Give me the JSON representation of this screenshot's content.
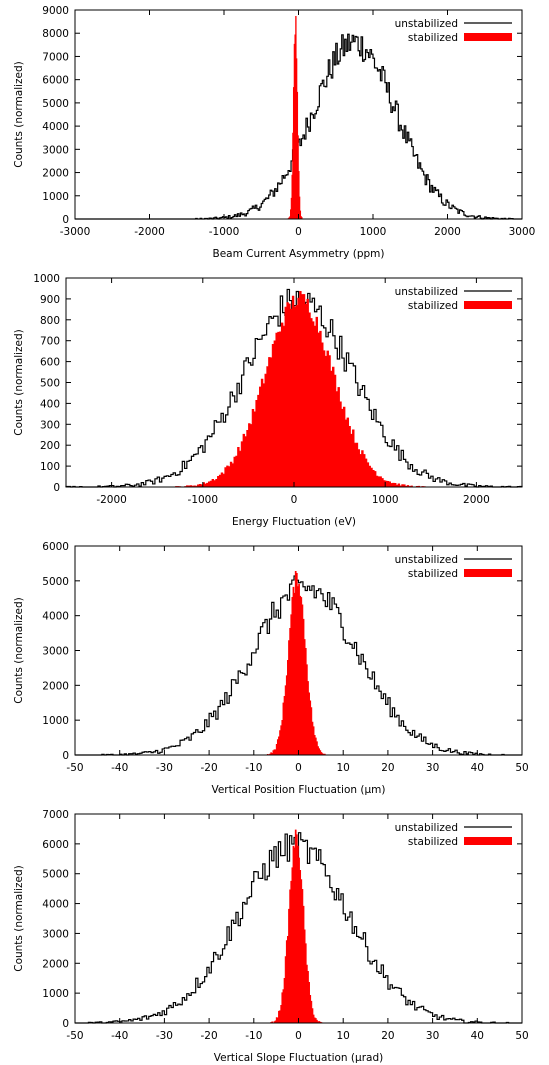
{
  "chart_data": [
    {
      "type": "histogram",
      "xlabel": "Beam Current Asymmetry (ppm)",
      "ylabel": "Counts (normalized)",
      "xlim": [
        -3000,
        3000
      ],
      "ylim": [
        0,
        9000
      ],
      "xticks": [
        -3000,
        -2000,
        -1000,
        0,
        1000,
        2000,
        3000
      ],
      "yticks": [
        0,
        1000,
        2000,
        3000,
        4000,
        5000,
        6000,
        7000,
        8000,
        9000
      ],
      "grid": false,
      "legend_position": "top-right",
      "series": [
        {
          "name": "unstabilized",
          "style": "step",
          "color": "#000000",
          "center": 750,
          "sigma": 560,
          "peak": 7600,
          "bin_width": 20
        },
        {
          "name": "stabilized",
          "style": "filled",
          "color": "#ff0000",
          "center": -40,
          "sigma": 26,
          "peak": 8500,
          "bin_width": 10
        }
      ]
    },
    {
      "type": "histogram",
      "xlabel": "Energy Fluctuation (eV)",
      "ylabel": "Counts (normalized)",
      "xlim": [
        -2500,
        2500
      ],
      "ylim": [
        0,
        1000
      ],
      "xticks": [
        -2000,
        -1000,
        0,
        1000,
        2000
      ],
      "yticks": [
        0,
        100,
        200,
        300,
        400,
        500,
        600,
        700,
        800,
        900,
        1000
      ],
      "grid": false,
      "legend_position": "top-right",
      "series": [
        {
          "name": "unstabilized",
          "style": "step",
          "color": "#000000",
          "center": 50,
          "sigma": 600,
          "peak": 890,
          "bin_width": 25
        },
        {
          "name": "stabilized",
          "style": "filled",
          "color": "#ff0000",
          "center": 60,
          "sigma": 370,
          "peak": 900,
          "bin_width": 20
        }
      ]
    },
    {
      "type": "histogram",
      "xlabel": "Vertical Position Fluctuation (µm)",
      "ylabel": "Counts (normalized)",
      "xlim": [
        -50,
        50
      ],
      "ylim": [
        0,
        6000
      ],
      "xticks": [
        -50,
        -40,
        -30,
        -20,
        -10,
        0,
        10,
        20,
        30,
        40,
        50
      ],
      "yticks": [
        0,
        1000,
        2000,
        3000,
        4000,
        5000,
        6000
      ],
      "grid": false,
      "legend_position": "top-right",
      "series": [
        {
          "name": "unstabilized",
          "style": "step",
          "color": "#000000",
          "center": 1.5,
          "sigma": 12,
          "peak": 4800,
          "bin_width": 0.5
        },
        {
          "name": "stabilized",
          "style": "filled",
          "color": "#ff0000",
          "center": -0.3,
          "sigma": 1.9,
          "peak": 5100,
          "bin_width": 0.25
        }
      ]
    },
    {
      "type": "histogram",
      "xlabel": "Vertical Slope Fluctuation (µrad)",
      "ylabel": "Counts (normalized)",
      "xlim": [
        -50,
        50
      ],
      "ylim": [
        0,
        7000
      ],
      "xticks": [
        -50,
        -40,
        -30,
        -20,
        -10,
        0,
        10,
        20,
        30,
        40,
        50
      ],
      "yticks": [
        0,
        1000,
        2000,
        3000,
        4000,
        5000,
        6000,
        7000
      ],
      "grid": false,
      "legend_position": "top-right",
      "series": [
        {
          "name": "unstabilized",
          "style": "step",
          "color": "#000000",
          "center": -1,
          "sigma": 12.5,
          "peak": 5900,
          "bin_width": 0.5
        },
        {
          "name": "stabilized",
          "style": "filled",
          "color": "#ff0000",
          "center": -0.5,
          "sigma": 1.6,
          "peak": 6200,
          "bin_width": 0.25
        }
      ]
    }
  ]
}
